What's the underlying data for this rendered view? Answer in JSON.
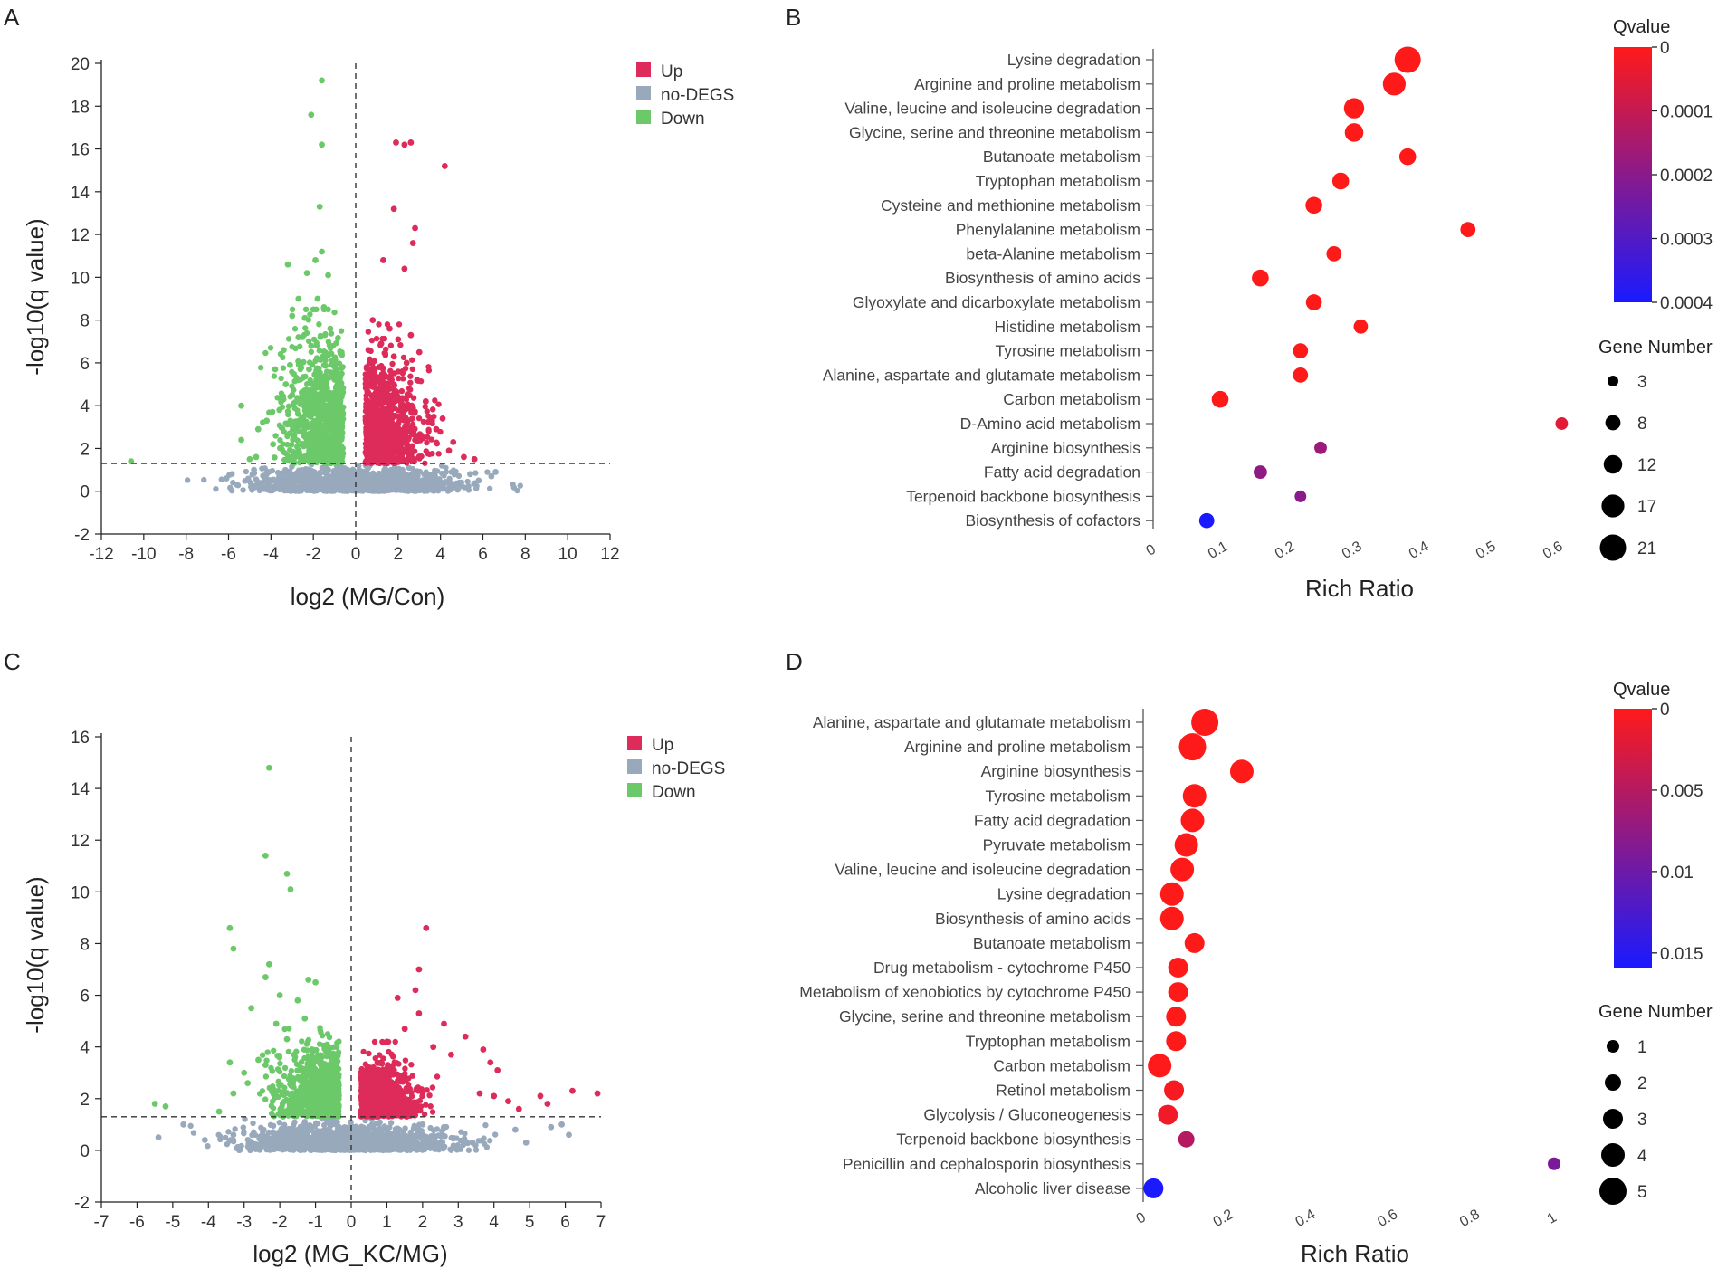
{
  "figure": {
    "panels": [
      "A",
      "B",
      "C",
      "D"
    ]
  },
  "colors": {
    "up": "#dd2b5a",
    "nodegs": "#98a9bc",
    "down": "#6cc969",
    "qhigh": "#ff1a1a",
    "qlow": "#1a1aff"
  },
  "chart_data": [
    {
      "panel": "A",
      "type": "scatter",
      "title": "",
      "xlabel": "log2 (MG/Con)",
      "ylabel": "-log10(q value)",
      "xlim": [
        -12,
        12
      ],
      "ylim": [
        -2,
        20
      ],
      "xticks": [
        -12,
        -10,
        -8,
        -6,
        -4,
        -2,
        0,
        2,
        4,
        6,
        8,
        10,
        12
      ],
      "yticks": [
        -2,
        0,
        2,
        4,
        6,
        8,
        10,
        12,
        14,
        16,
        18,
        20
      ],
      "threshold_y": 1.3,
      "threshold_x": 0,
      "legend": [
        "Up",
        "no-DEGS",
        "Down"
      ],
      "series": [
        {
          "name": "Up",
          "points": [
            [
              1.9,
              16.3
            ],
            [
              2.3,
              16.2
            ],
            [
              2.6,
              16.3
            ],
            [
              4.2,
              15.2
            ],
            [
              1.8,
              13.2
            ],
            [
              2.8,
              12.3
            ],
            [
              2.7,
              11.6
            ],
            [
              1.3,
              10.8
            ],
            [
              2.3,
              10.4
            ],
            [
              0.8,
              8.0
            ],
            [
              1.6,
              7.6
            ],
            [
              2.0,
              7.1
            ],
            [
              2.6,
              7.3
            ],
            [
              1.2,
              6.9
            ],
            [
              3.0,
              6.5
            ],
            [
              0.6,
              6.6
            ],
            [
              1.8,
              6.3
            ],
            [
              2.4,
              6.0
            ],
            [
              2.9,
              5.2
            ],
            [
              1.1,
              5.8
            ],
            [
              3.3,
              4.2
            ],
            [
              0.9,
              5.4
            ],
            [
              2.2,
              5.6
            ],
            [
              3.6,
              3.3
            ],
            [
              4.1,
              3.4
            ],
            [
              3.8,
              2.9
            ],
            [
              2.7,
              3.9
            ],
            [
              1.5,
              4.9
            ],
            [
              4.6,
              2.3
            ],
            [
              4.4,
              1.9
            ],
            [
              5.1,
              1.6
            ],
            [
              5.6,
              1.5
            ],
            [
              2.0,
              4.4
            ],
            [
              3.1,
              2.6
            ],
            [
              1.4,
              3.6
            ],
            [
              0.7,
              4.1
            ]
          ]
        },
        {
          "name": "Down",
          "points": [
            [
              -1.6,
              19.2
            ],
            [
              -2.1,
              17.6
            ],
            [
              -1.6,
              16.2
            ],
            [
              -1.7,
              13.3
            ],
            [
              -1.9,
              10.8
            ],
            [
              -1.6,
              11.2
            ],
            [
              -3.2,
              10.6
            ],
            [
              -2.3,
              10.2
            ],
            [
              -1.3,
              10.1
            ],
            [
              -2.7,
              9.0
            ],
            [
              -1.8,
              9.0
            ],
            [
              -3.0,
              8.2
            ],
            [
              -2.4,
              8.1
            ],
            [
              -1.2,
              7.6
            ],
            [
              -1.5,
              8.6
            ],
            [
              -2.7,
              7.2
            ],
            [
              -3.4,
              6.6
            ],
            [
              -2.1,
              6.8
            ],
            [
              -3.1,
              5.9
            ],
            [
              -1.0,
              6.2
            ],
            [
              -3.8,
              5.7
            ],
            [
              -3.3,
              5.0
            ],
            [
              -2.5,
              5.3
            ],
            [
              -5.4,
              4.0
            ],
            [
              -4.2,
              3.3
            ],
            [
              -3.6,
              3.8
            ],
            [
              -4.6,
              2.9
            ],
            [
              -5.4,
              2.4
            ],
            [
              -5.0,
              1.5
            ],
            [
              -4.7,
              1.6
            ],
            [
              -10.6,
              1.4
            ],
            [
              -3.0,
              4.5
            ],
            [
              -2.2,
              5.7
            ],
            [
              -1.4,
              4.9
            ],
            [
              -2.9,
              3.1
            ],
            [
              -3.9,
              2.2
            ]
          ]
        },
        {
          "name": "no-DEGS",
          "points": [
            [
              -6.1,
              0.6
            ],
            [
              -5.6,
              0.3
            ],
            [
              -4.1,
              0.9
            ],
            [
              -3.2,
              0.5
            ],
            [
              -2.4,
              0.8
            ],
            [
              -1.2,
              0.4
            ],
            [
              0.5,
              0.2
            ],
            [
              1.6,
              0.6
            ],
            [
              2.9,
              0.9
            ],
            [
              4.1,
              0.3
            ],
            [
              5.4,
              0.8
            ],
            [
              6.4,
              0.7
            ],
            [
              6.6,
              0.9
            ],
            [
              5.8,
              0.5
            ],
            [
              3.5,
              0.4
            ],
            [
              -0.6,
              0.8
            ],
            [
              -4.8,
              1.0
            ],
            [
              2.2,
              1.0
            ]
          ]
        }
      ]
    },
    {
      "panel": "B",
      "type": "scatter",
      "xlabel": "Rich Ratio",
      "xlim": [
        0,
        0.6
      ],
      "xticks": [
        0,
        0.1,
        0.2,
        0.3,
        0.4,
        0.5,
        0.6
      ],
      "color_legend_title": "Qvalue",
      "color_ticks": [
        0,
        0.0001,
        0.0002,
        0.0003,
        0.0004
      ],
      "color_tick_labels": [
        "0",
        "0.0001",
        "0.0002",
        "0.0003",
        "0.0004"
      ],
      "size_legend_title": "Gene Number",
      "size_legend": [
        3,
        8,
        12,
        17,
        21
      ],
      "categories": [
        "Lysine degradation",
        "Arginine and proline metabolism",
        "Valine, leucine and isoleucine degradation",
        "Glycine, serine and threonine metabolism",
        "Butanoate metabolism",
        "Tryptophan metabolism",
        "Cysteine and methionine metabolism",
        "Phenylalanine metabolism",
        "beta-Alanine metabolism",
        "Biosynthesis of amino acids",
        "Glyoxylate and dicarboxylate metabolism",
        "Histidine metabolism",
        "Tyrosine metabolism",
        "Alanine, aspartate and glutamate metabolism",
        "Carbon metabolism",
        "D-Amino acid metabolism",
        "Arginine biosynthesis",
        "Fatty acid degradation",
        "Terpenoid backbone biosynthesis",
        "Biosynthesis of cofactors"
      ],
      "rich_ratio": [
        0.38,
        0.36,
        0.3,
        0.3,
        0.38,
        0.28,
        0.24,
        0.47,
        0.27,
        0.16,
        0.24,
        0.31,
        0.22,
        0.22,
        0.1,
        0.61,
        0.25,
        0.16,
        0.22,
        0.08
      ],
      "gene_number": [
        21,
        17,
        14,
        12,
        10,
        10,
        10,
        8,
        8,
        10,
        9,
        7,
        8,
        8,
        10,
        5,
        5,
        6,
        4,
        8
      ],
      "qvalue": [
        0,
        0,
        0,
        0,
        0,
        0,
        0,
        0,
        0,
        0,
        0,
        0,
        0,
        0,
        0,
        5e-05,
        0.00017,
        0.00019,
        0.0002,
        0.0004
      ]
    },
    {
      "panel": "C",
      "type": "scatter",
      "xlabel": "log2 (MG_KC/MG)",
      "ylabel": "-log10(q value)",
      "xlim": [
        -7,
        7
      ],
      "ylim": [
        -2,
        16
      ],
      "xticks": [
        -7,
        -6,
        -5,
        -4,
        -3,
        -2,
        -1,
        0,
        1,
        2,
        3,
        4,
        5,
        6,
        7
      ],
      "yticks": [
        -2,
        0,
        2,
        4,
        6,
        8,
        10,
        12,
        14,
        16
      ],
      "threshold_y": 1.3,
      "threshold_x": 0,
      "legend": [
        "Up",
        "no-DEGS",
        "Down"
      ],
      "series": [
        {
          "name": "Up",
          "points": [
            [
              2.1,
              8.6
            ],
            [
              1.9,
              7.0
            ],
            [
              1.8,
              6.2
            ],
            [
              1.3,
              5.9
            ],
            [
              1.9,
              5.3
            ],
            [
              2.6,
              4.9
            ],
            [
              3.2,
              4.4
            ],
            [
              3.7,
              3.9
            ],
            [
              2.3,
              4.0
            ],
            [
              1.0,
              4.2
            ],
            [
              1.5,
              4.7
            ],
            [
              3.9,
              3.4
            ],
            [
              4.0,
              2.1
            ],
            [
              4.4,
              1.9
            ],
            [
              4.7,
              1.6
            ],
            [
              5.3,
              2.1
            ],
            [
              5.5,
              1.8
            ],
            [
              6.2,
              2.3
            ],
            [
              6.9,
              2.2
            ],
            [
              4.1,
              3.1
            ],
            [
              3.6,
              2.2
            ],
            [
              2.8,
              3.7
            ],
            [
              1.2,
              3.1
            ],
            [
              0.8,
              3.0
            ]
          ]
        },
        {
          "name": "Down",
          "points": [
            [
              -2.3,
              14.8
            ],
            [
              -2.4,
              11.4
            ],
            [
              -1.8,
              10.7
            ],
            [
              -1.7,
              10.1
            ],
            [
              -3.4,
              8.6
            ],
            [
              -3.3,
              7.8
            ],
            [
              -2.3,
              7.2
            ],
            [
              -2.4,
              6.7
            ],
            [
              -1.2,
              6.6
            ],
            [
              -1.0,
              6.5
            ],
            [
              -2.0,
              6.0
            ],
            [
              -1.5,
              5.8
            ],
            [
              -2.8,
              5.5
            ],
            [
              -1.3,
              5.1
            ],
            [
              -2.1,
              4.9
            ],
            [
              -1.8,
              4.3
            ],
            [
              -3.4,
              3.4
            ],
            [
              -2.6,
              3.5
            ],
            [
              -3.0,
              3.0
            ],
            [
              -2.4,
              3.3
            ],
            [
              -5.5,
              1.8
            ],
            [
              -5.2,
              1.7
            ],
            [
              -3.7,
              1.5
            ],
            [
              -3.3,
              2.2
            ],
            [
              -2.9,
              2.6
            ],
            [
              -1.1,
              3.9
            ],
            [
              -0.8,
              2.9
            ],
            [
              -1.6,
              3.7
            ]
          ]
        },
        {
          "name": "no-DEGS",
          "points": [
            [
              -5.4,
              0.5
            ],
            [
              -4.1,
              0.4
            ],
            [
              -3.3,
              0.6
            ],
            [
              -2.6,
              0.2
            ],
            [
              -1.8,
              0.8
            ],
            [
              -0.7,
              0.3
            ],
            [
              0.4,
              0.6
            ],
            [
              1.4,
              0.4
            ],
            [
              2.6,
              0.9
            ],
            [
              3.4,
              0.3
            ],
            [
              4.6,
              0.8
            ],
            [
              5.6,
              0.9
            ],
            [
              5.9,
              1.0
            ],
            [
              6.1,
              0.6
            ],
            [
              4.9,
              0.3
            ],
            [
              -4.7,
              1.0
            ],
            [
              2.0,
              1.0
            ],
            [
              -1.3,
              1.1
            ]
          ]
        }
      ]
    },
    {
      "panel": "D",
      "type": "scatter",
      "xlabel": "Rich Ratio",
      "xlim": [
        0,
        1
      ],
      "xticks": [
        0,
        0.2,
        0.4,
        0.6,
        0.8,
        1
      ],
      "color_legend_title": "Qvalue",
      "color_ticks": [
        0,
        0.005,
        0.01,
        0.015
      ],
      "color_tick_labels": [
        "0",
        "0.005",
        "0.01",
        "0.015"
      ],
      "color_max": 0.0159,
      "size_legend_title": "Gene Number",
      "size_legend": [
        1,
        2,
        3,
        4,
        5
      ],
      "categories": [
        "Alanine, aspartate and glutamate metabolism",
        "Arginine and proline metabolism",
        "Arginine biosynthesis",
        "Tyrosine metabolism",
        "Fatty acid degradation",
        "Pyruvate metabolism",
        "Valine, leucine and isoleucine degradation",
        "Lysine degradation",
        "Biosynthesis of amino acids",
        "Butanoate metabolism",
        "Drug metabolism - cytochrome P450",
        "Metabolism of xenobiotics by cytochrome P450",
        "Glycine, serine and threonine metabolism",
        "Tryptophan metabolism",
        "Carbon metabolism",
        "Retinol metabolism",
        "Glycolysis / Gluconeogenesis",
        "Terpenoid backbone biosynthesis",
        "Penicillin and cephalosporin biosynthesis",
        "Alcoholic liver disease"
      ],
      "rich_ratio": [
        0.15,
        0.12,
        0.24,
        0.125,
        0.12,
        0.105,
        0.095,
        0.07,
        0.07,
        0.125,
        0.085,
        0.085,
        0.08,
        0.08,
        0.04,
        0.075,
        0.06,
        0.105,
        1.0,
        0.025
      ],
      "gene_number": [
        5,
        5,
        4,
        4,
        4,
        4,
        4,
        4,
        4,
        3,
        3,
        3,
        3,
        3,
        4,
        3,
        3,
        2,
        1,
        3
      ],
      "qvalue": [
        0,
        0,
        0,
        0,
        0,
        0,
        0,
        0,
        0,
        0,
        0,
        0,
        0,
        0,
        0,
        0.0005,
        0.001,
        0.005,
        0.009,
        0.0158
      ]
    }
  ]
}
